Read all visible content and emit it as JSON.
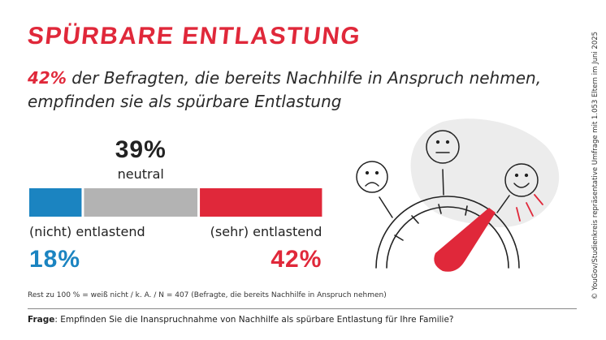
{
  "title": "SPÜRBARE ENTLASTUNG",
  "subtitle": {
    "highlight": "42%",
    "text_line1": " der Befragten, die bereits Nachhilfe in Anspruch nehmen,",
    "text_line2": "empfinden sie als spürbare Entlastung"
  },
  "chart_data": {
    "type": "bar",
    "orientation": "horizontal-stacked",
    "unit": "%",
    "segments": [
      {
        "label": "(nicht) entlastend",
        "value": 18,
        "value_label": "18%",
        "color": "#1b84c1"
      },
      {
        "label": "neutral",
        "value": 39,
        "value_label": "39%",
        "color": "#b3b3b3"
      },
      {
        "label": "(sehr) entlastend",
        "value": 42,
        "value_label": "42%",
        "color": "#e0283a"
      }
    ]
  },
  "note": "Rest zu 100 % = weiß nicht / k. A. / N = 407 (Befragte, die bereits Nachhilfe in Anspruch nehmen)",
  "question": {
    "label": "Frage",
    "text": ": Empfinden Sie die Inanspruchnahme von Nachhilfe als spürbare Entlastung für Ihre Familie?"
  },
  "source": "© YouGov/Studienkreis repräsentative Umfrage mit 1.053 Eltern im Juni 2025",
  "illustration": {
    "icons": [
      "sad-face-icon",
      "neutral-face-icon",
      "happy-face-icon",
      "gauge-needle-icon"
    ],
    "blob_color": "#ececec",
    "accent_color": "#e0283a"
  }
}
